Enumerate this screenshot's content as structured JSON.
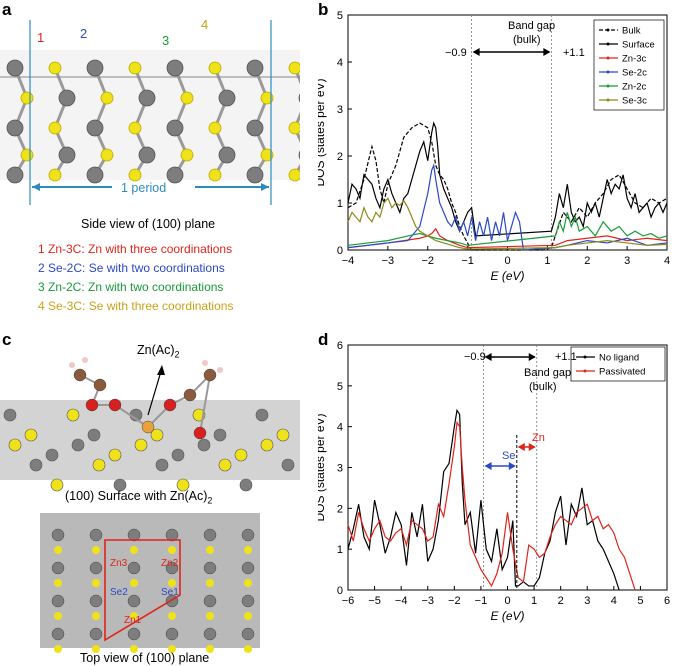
{
  "panels": {
    "a": {
      "label": "a",
      "site_numbers": [
        {
          "text": "1",
          "color": "#e0241b"
        },
        {
          "text": "2",
          "color": "#2a49c7"
        },
        {
          "text": "3",
          "color": "#1b9a3a"
        },
        {
          "text": "4",
          "color": "#c8a21a"
        }
      ],
      "period_label": "1 period",
      "caption": "Side view of (100) plane",
      "descriptions": [
        {
          "text": "1 Zn-3C: Zn with three coordinations",
          "color": "#e0241b"
        },
        {
          "text": "2 Se-2C: Se with two coordinations",
          "color": "#2a49c7"
        },
        {
          "text": "3 Zn-2C: Zn with two coordinations",
          "color": "#1b9a3a"
        },
        {
          "text": "4 Se-3C: Se with three coordinations",
          "color": "#c8a21a"
        }
      ]
    },
    "b": {
      "label": "b",
      "annotations": {
        "band_gap": "Band gap",
        "bulk": "(bulk)",
        "left_edge": "−0.9",
        "right_edge": "+1.1"
      }
    },
    "c": {
      "label": "c",
      "molecule_label": "Zn(Ac)",
      "molecule_sub": "2",
      "caption_top": "(100) Surface with Zn(Ac)",
      "caption_top_sub": "2",
      "top_labels": [
        {
          "text": "Zn3",
          "color": "#e0241b"
        },
        {
          "text": "Zn2",
          "color": "#e0241b"
        },
        {
          "text": "Se2",
          "color": "#2a49c7"
        },
        {
          "text": "Se1",
          "color": "#2a49c7"
        },
        {
          "text": "Zn1",
          "color": "#e0241b"
        }
      ],
      "caption_bottom": "Top view of (100) plane"
    },
    "d": {
      "label": "d",
      "annotations": {
        "band_gap": "Band gap",
        "bulk": "(bulk)",
        "left_edge": "−0.9",
        "right_edge": "+1.1",
        "se": "Se",
        "zn": "Zn"
      }
    }
  },
  "colors": {
    "zn": "#7d7d7d",
    "se": "#f0e218",
    "bond_blue": "#2e8bc0"
  },
  "chart_data": [
    {
      "type": "line",
      "panel": "b",
      "ylabel": "DOS (states per eV)",
      "xlabel": "E (eV)",
      "xlim": [
        -4,
        4
      ],
      "ylim": [
        0,
        5
      ],
      "xticks": [
        -4,
        -3,
        -2,
        -1,
        0,
        1,
        2,
        3,
        4
      ],
      "yticks": [
        0,
        1,
        2,
        3,
        4,
        5
      ],
      "vlines": [
        -0.9,
        1.1
      ],
      "legend_position": "top-right",
      "series": [
        {
          "name": "Bulk",
          "color": "#000000",
          "dash": "4,2",
          "x": [
            -4,
            -3.8,
            -3.6,
            -3.4,
            -3.3,
            -3.2,
            -3.1,
            -3.0,
            -2.8,
            -2.6,
            -2.4,
            -2.2,
            -2.0,
            -1.9,
            -1.8,
            -1.7,
            -1.6,
            -1.5,
            -1.4,
            -1.3,
            -1.2,
            -1.1,
            -1.0,
            -0.95,
            -0.9,
            0.9,
            1.1,
            1.2,
            1.4,
            1.6,
            1.8,
            2.0,
            2.2,
            2.4,
            2.6,
            2.8,
            3.0,
            3.2,
            3.4,
            3.6,
            3.8,
            4.0
          ],
          "y": [
            0.9,
            1.0,
            1.5,
            2.2,
            1.9,
            1.3,
            1.0,
            1.4,
            1.8,
            2.4,
            2.6,
            2.7,
            2.6,
            2.3,
            1.8,
            1.6,
            1.5,
            1.3,
            1.0,
            0.8,
            0.5,
            0.3,
            0.15,
            0.05,
            0,
            0,
            0.05,
            0.3,
            0.8,
            0.6,
            0.9,
            0.7,
            1.0,
            1.2,
            1.5,
            1.6,
            1.3,
            1.0,
            0.9,
            1.1,
            1.0,
            1.1
          ]
        },
        {
          "name": "Surface",
          "color": "#000000",
          "dash": "",
          "x": [
            -4,
            -3.9,
            -3.8,
            -3.7,
            -3.6,
            -3.5,
            -3.4,
            -3.3,
            -3.2,
            -3.1,
            -3.0,
            -2.9,
            -2.8,
            -2.7,
            -2.6,
            -2.5,
            -2.4,
            -2.3,
            -2.2,
            -2.1,
            -2.0,
            -1.9,
            -1.85,
            -1.8,
            -1.75,
            -1.7,
            -1.6,
            -1.5,
            -1.4,
            -1.3,
            -1.2,
            -1.1,
            -1.0,
            -0.9,
            -0.8,
            1.1,
            1.2,
            1.3,
            1.4,
            1.5,
            1.6,
            1.7,
            1.8,
            1.9,
            2.0,
            2.1,
            2.2,
            2.3,
            2.4,
            2.5,
            2.6,
            2.7,
            2.8,
            2.9,
            3.0,
            3.1,
            3.2,
            3.3,
            3.4,
            3.5,
            3.6,
            3.7,
            3.8,
            3.9,
            4.0
          ],
          "y": [
            1.0,
            1.4,
            1.3,
            1.1,
            1.6,
            1.5,
            1.4,
            1.1,
            0.9,
            1.3,
            1.5,
            1.2,
            1.0,
            0.8,
            1.1,
            1.2,
            1.5,
            1.8,
            2.1,
            2.3,
            1.9,
            2.5,
            2.7,
            2.6,
            2.2,
            1.6,
            1.3,
            1.1,
            0.9,
            0.6,
            0.4,
            0.6,
            0.8,
            0.9,
            0.3,
            0.4,
            0.7,
            1.2,
            0.9,
            1.4,
            0.8,
            0.6,
            0.7,
            0.5,
            1.0,
            0.8,
            1.0,
            0.7,
            1.1,
            1.5,
            1.2,
            1.4,
            1.3,
            1.6,
            1.1,
            0.9,
            1.2,
            0.8,
            0.9,
            1.0,
            0.7,
            0.9,
            1.0,
            0.8,
            1.0
          ]
        },
        {
          "name": "Zn-3c",
          "color": "#e0241b",
          "dash": "",
          "x": [
            -4,
            -3.5,
            -3.0,
            -2.6,
            -2.2,
            -2.0,
            -1.9,
            -1.8,
            -1.7,
            -1.5,
            -1.2,
            -1.0,
            1.2,
            1.5,
            2.0,
            2.5,
            3.0,
            3.5,
            4.0
          ],
          "y": [
            0.05,
            0.1,
            0.15,
            0.2,
            0.25,
            0.3,
            0.35,
            0.45,
            0.3,
            0.2,
            0.1,
            0.05,
            0.1,
            0.2,
            0.25,
            0.3,
            0.2,
            0.25,
            0.2
          ]
        },
        {
          "name": "Se-2c",
          "color": "#2a49c7",
          "dash": "",
          "x": [
            -4,
            -3.5,
            -3.0,
            -2.5,
            -2.2,
            -2.0,
            -1.9,
            -1.85,
            -1.8,
            -1.7,
            -1.6,
            -1.5,
            -1.4,
            -1.3,
            -1.2,
            -1.1,
            -1.0,
            -0.9,
            -0.8,
            -0.7,
            -0.6,
            -0.5,
            -0.4,
            -0.3,
            -0.2,
            -0.1,
            0.0,
            0.1,
            0.2,
            0.3,
            0.4,
            1.2,
            1.5,
            2.0,
            2.5,
            3.0,
            3.5,
            4.0
          ],
          "y": [
            0.05,
            0.1,
            0.15,
            0.2,
            0.5,
            1.2,
            1.7,
            1.8,
            1.5,
            1.0,
            0.8,
            0.6,
            0.5,
            0.7,
            0.4,
            0.6,
            0.3,
            0.7,
            0.2,
            0.6,
            0.3,
            0.7,
            0.2,
            0.6,
            0.3,
            0.8,
            0.2,
            0.5,
            0.8,
            0.6,
            0.0,
            0.05,
            0.1,
            0.2,
            0.15,
            0.25,
            0.1,
            0.15
          ]
        },
        {
          "name": "Zn-2c",
          "color": "#1b9a3a",
          "dash": "",
          "x": [
            -4,
            -3.5,
            -3.0,
            -2.5,
            -2.2,
            -2.0,
            -1.8,
            -1.5,
            -1.2,
            -1.0,
            1.2,
            1.3,
            1.4,
            1.5,
            1.6,
            1.7,
            1.8,
            2.0,
            2.2,
            2.4,
            2.6,
            2.8,
            3.0,
            3.2,
            3.4,
            3.6,
            3.8,
            4.0
          ],
          "y": [
            0.1,
            0.15,
            0.2,
            0.3,
            0.35,
            0.3,
            0.25,
            0.2,
            0.15,
            0.1,
            0.3,
            0.6,
            0.4,
            0.8,
            0.5,
            0.7,
            0.4,
            0.5,
            0.3,
            0.6,
            0.4,
            0.5,
            0.3,
            0.4,
            0.3,
            0.35,
            0.25,
            0.3
          ]
        },
        {
          "name": "Se-3c",
          "color": "#8a8a1a",
          "dash": "",
          "x": [
            -4,
            -3.9,
            -3.8,
            -3.7,
            -3.6,
            -3.5,
            -3.4,
            -3.3,
            -3.2,
            -3.1,
            -3.0,
            -2.9,
            -2.8,
            -2.7,
            -2.6,
            -2.5,
            -2.4,
            -2.3,
            -2.2,
            -2.0,
            -1.8,
            -1.6,
            -1.4,
            -1.2,
            -1.0,
            1.2,
            1.5,
            2.0,
            2.5,
            3.0,
            3.5,
            4.0
          ],
          "y": [
            0.6,
            0.8,
            0.7,
            0.6,
            0.9,
            0.7,
            0.6,
            0.8,
            0.7,
            1.0,
            1.1,
            0.9,
            1.0,
            0.95,
            1.05,
            0.9,
            0.7,
            0.5,
            0.4,
            0.3,
            0.2,
            0.15,
            0.1,
            0.05,
            0.02,
            0.05,
            0.1,
            0.15,
            0.2,
            0.15,
            0.1,
            0.12
          ]
        }
      ]
    },
    {
      "type": "line",
      "panel": "d",
      "ylabel": "DOS (states per eV)",
      "xlabel": "E (eV)",
      "xlim": [
        -6,
        6
      ],
      "ylim": [
        0,
        6
      ],
      "xticks": [
        -6,
        -5,
        -4,
        -3,
        -2,
        -1,
        0,
        1,
        2,
        3,
        4,
        5,
        6
      ],
      "yticks": [
        0,
        1,
        2,
        3,
        4,
        5,
        6
      ],
      "vlines": [
        -0.9,
        1.1
      ],
      "legend_position": "top-right",
      "series": [
        {
          "name": "No ligand",
          "color": "#000000",
          "x": [
            -6,
            -5.8,
            -5.6,
            -5.4,
            -5.2,
            -5.0,
            -4.8,
            -4.6,
            -4.4,
            -4.2,
            -4.0,
            -3.8,
            -3.6,
            -3.4,
            -3.2,
            -3.0,
            -2.8,
            -2.6,
            -2.4,
            -2.2,
            -2.0,
            -1.9,
            -1.8,
            -1.7,
            -1.6,
            -1.4,
            -1.2,
            -1.0,
            -0.8,
            -0.6,
            -0.4,
            -0.2,
            0.0,
            0.2,
            0.3,
            0.4,
            0.6,
            0.8,
            1.0,
            1.2,
            1.4,
            1.6,
            1.8,
            2.0,
            2.2,
            2.4,
            2.6,
            2.8,
            3.0,
            3.2,
            3.4,
            3.6,
            3.8,
            4.0,
            4.2
          ],
          "y": [
            1.0,
            1.5,
            2.1,
            1.3,
            1.0,
            2.2,
            1.6,
            0.9,
            1.3,
            1.9,
            1.6,
            0.6,
            1.9,
            1.3,
            2.1,
            0.7,
            1.0,
            1.7,
            2.9,
            3.1,
            4.0,
            4.4,
            4.3,
            2.6,
            1.6,
            1.9,
            0.9,
            2.2,
            1.0,
            0.7,
            1.5,
            0.5,
            0.8,
            1.7,
            0.1,
            0.1,
            0.2,
            0.1,
            0.1,
            0.3,
            0.9,
            1.2,
            1.9,
            2.3,
            1.1,
            2.1,
            1.8,
            2.5,
            1.6,
            1.7,
            1.2,
            1.0,
            0.7,
            0.4,
            0.0
          ]
        },
        {
          "name": "Passivated",
          "color": "#e0241b",
          "x": [
            -6,
            -5.8,
            -5.6,
            -5.4,
            -5.2,
            -5.0,
            -4.8,
            -4.6,
            -4.4,
            -4.2,
            -4.0,
            -3.8,
            -3.6,
            -3.4,
            -3.2,
            -3.0,
            -2.8,
            -2.6,
            -2.4,
            -2.2,
            -2.0,
            -1.9,
            -1.8,
            -1.7,
            -1.6,
            -1.4,
            -1.2,
            -1.0,
            -0.8,
            -0.6,
            -0.4,
            -0.2,
            0.0,
            0.2,
            0.4,
            0.6,
            0.8,
            1.0,
            1.2,
            1.4,
            1.6,
            1.8,
            2.0,
            2.2,
            2.4,
            2.6,
            2.8,
            3.0,
            3.2,
            3.4,
            3.6,
            3.8,
            4.0,
            4.2,
            4.4,
            4.6,
            4.8
          ],
          "y": [
            1.6,
            1.2,
            1.9,
            1.5,
            1.2,
            1.5,
            1.7,
            1.3,
            1.2,
            1.4,
            1.5,
            1.1,
            1.7,
            1.6,
            1.5,
            1.2,
            1.3,
            2.1,
            1.8,
            2.6,
            3.5,
            4.1,
            4.0,
            3.0,
            2.2,
            1.1,
            0.8,
            0.5,
            0.3,
            0.1,
            0.4,
            0.9,
            1.9,
            1.0,
            0.3,
            0.2,
            1.1,
            1.0,
            0.8,
            0.9,
            1.3,
            1.6,
            1.8,
            1.7,
            1.6,
            1.9,
            2.0,
            2.1,
            1.7,
            1.8,
            1.5,
            1.6,
            1.4,
            1.0,
            0.8,
            0.4,
            0.0
          ]
        }
      ]
    }
  ]
}
